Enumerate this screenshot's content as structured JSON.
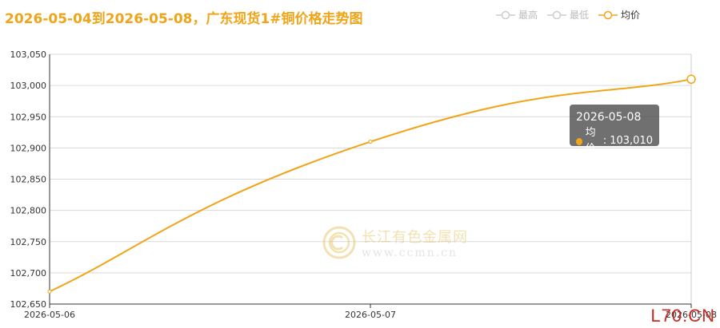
{
  "title": "2026-05-04到2026-05-08，广东现货1#铜价格走势图",
  "legend": [
    {
      "label": "最高",
      "active": false,
      "color": "#cccccc"
    },
    {
      "label": "最低",
      "active": false,
      "color": "#cccccc"
    },
    {
      "label": "均价",
      "active": true,
      "color": "#f0a518"
    }
  ],
  "tooltip": {
    "date": "2026-05-08",
    "series": "均价",
    "value": "103,010"
  },
  "watermark": {
    "name": "长江有色金属网",
    "url": "www.ccmn.cn"
  },
  "corner_text": "L70.CN",
  "chart_data": {
    "type": "line",
    "x": [
      "2026-05-06",
      "2026-05-07",
      "2026-05-08"
    ],
    "series": [
      {
        "name": "均价",
        "values": [
          102670,
          102910,
          103010
        ],
        "color": "#f0a518"
      }
    ],
    "ylim": [
      102650,
      103050
    ],
    "yticks": [
      102650,
      102700,
      102750,
      102800,
      102850,
      102900,
      102950,
      103000,
      103050
    ],
    "ytick_labels": [
      "102,650",
      "102,700",
      "102,750",
      "102,800",
      "102,850",
      "102,900",
      "102,950",
      "103,000",
      "103,050"
    ],
    "grid": true,
    "legend_position": "top-right"
  }
}
